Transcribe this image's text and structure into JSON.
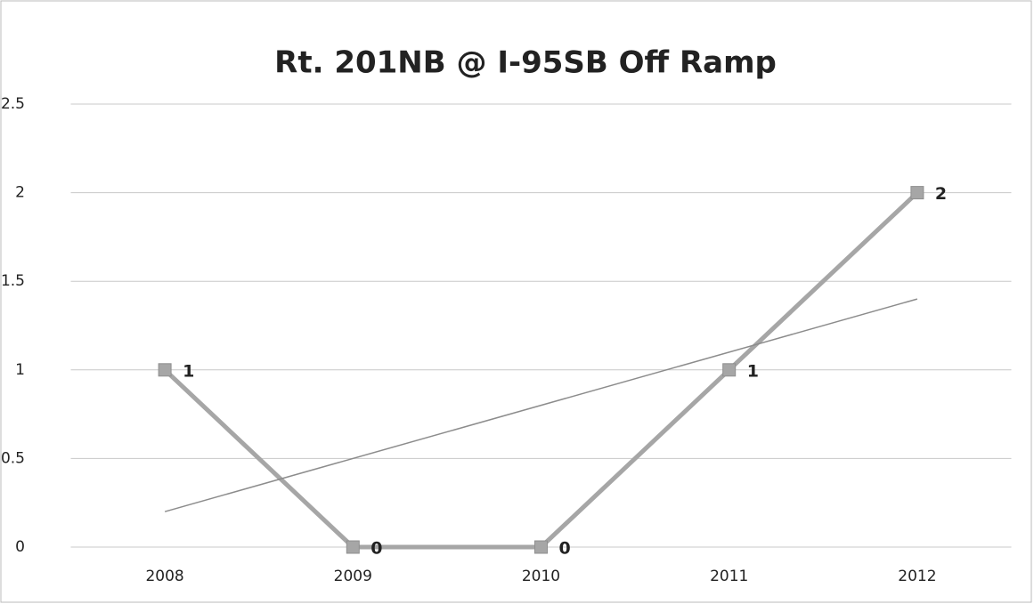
{
  "chart_data": {
    "type": "line",
    "title": "Rt. 201NB @ I-95SB Off Ramp",
    "categories": [
      "2008",
      "2009",
      "2010",
      "2011",
      "2012"
    ],
    "series": [
      {
        "color": "#a6a6a6",
        "values": [
          1,
          0,
          0,
          1,
          2
        ]
      }
    ],
    "ylim": [
      0,
      2.5
    ],
    "yticks": [
      0,
      0.5,
      1,
      1.5,
      2,
      2.5
    ],
    "grid": true,
    "data_labels": true,
    "trendline": {
      "type": "linear",
      "color": "#8c8c8c"
    }
  }
}
